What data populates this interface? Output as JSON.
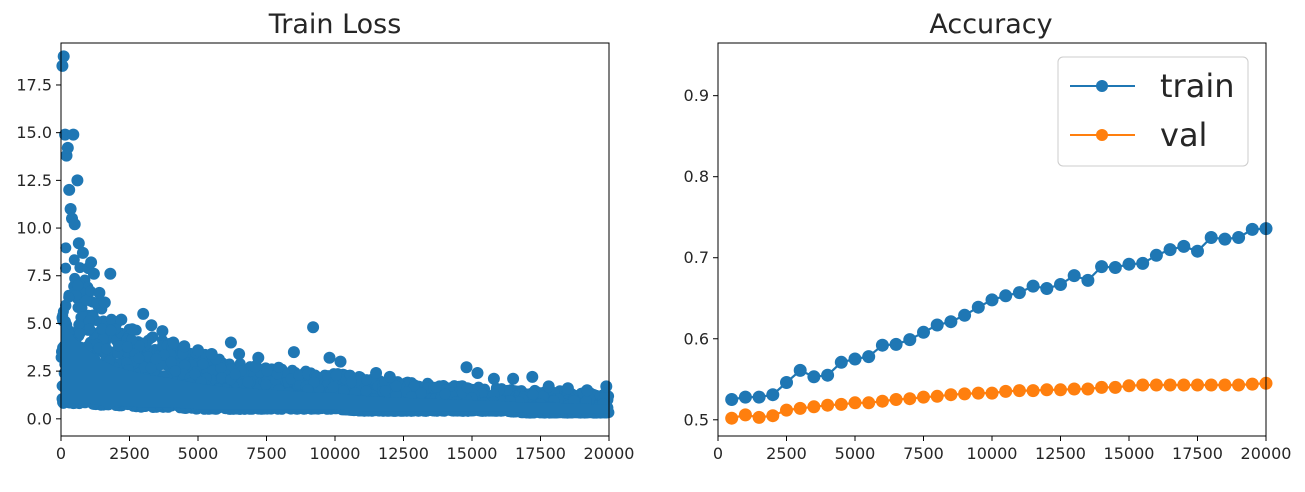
{
  "colors": {
    "train": "#1f77b4",
    "val": "#ff7f0e",
    "axis": "#000000",
    "text": "#262626"
  },
  "chart_data": [
    {
      "type": "scatter",
      "title": "Train Loss",
      "xlabel": "",
      "ylabel": "",
      "xlim": [
        0,
        20000
      ],
      "ylim": [
        -0.9,
        19.7
      ],
      "xticks": [
        0,
        2500,
        5000,
        7500,
        10000,
        12500,
        15000,
        17500,
        20000
      ],
      "yticks": [
        0.0,
        2.5,
        5.0,
        7.5,
        10.0,
        12.5,
        15.0,
        17.5
      ],
      "grid": false,
      "series": [
        {
          "color": "#1f77b4",
          "envelope": {
            "x": [
              0,
              500,
              1000,
              1500,
              2000,
              3000,
              4000,
              5000,
              6000,
              7000,
              8000,
              9000,
              10000,
              11000,
              12000,
              13000,
              14000,
              15000,
              16000,
              17000,
              18000,
              19000,
              20000
            ],
            "upper": [
              10.5,
              8.5,
              7.0,
              6.0,
              5.2,
              4.5,
              4.0,
              3.5,
              3.1,
              2.9,
              2.7,
              2.5,
              2.4,
              2.2,
              2.0,
              1.9,
              1.8,
              1.7,
              1.6,
              1.5,
              1.5,
              1.4,
              1.3
            ],
            "lower": [
              0.8,
              0.8,
              0.8,
              0.7,
              0.7,
              0.6,
              0.6,
              0.5,
              0.5,
              0.5,
              0.5,
              0.5,
              0.5,
              0.4,
              0.4,
              0.4,
              0.4,
              0.4,
              0.4,
              0.3,
              0.3,
              0.3,
              0.3
            ]
          },
          "outliers": [
            [
              50,
              18.5
            ],
            [
              100,
              19.0
            ],
            [
              150,
              14.9
            ],
            [
              200,
              13.8
            ],
            [
              250,
              14.2
            ],
            [
              300,
              12.0
            ],
            [
              350,
              11.0
            ],
            [
              400,
              10.5
            ],
            [
              450,
              14.9
            ],
            [
              500,
              10.2
            ],
            [
              600,
              12.5
            ],
            [
              650,
              9.2
            ],
            [
              800,
              8.7
            ],
            [
              1000,
              7.9
            ],
            [
              1100,
              8.2
            ],
            [
              1200,
              7.6
            ],
            [
              1400,
              6.6
            ],
            [
              1600,
              6.1
            ],
            [
              1800,
              7.6
            ],
            [
              2200,
              5.2
            ],
            [
              2600,
              4.7
            ],
            [
              3000,
              5.5
            ],
            [
              3300,
              4.9
            ],
            [
              3700,
              4.6
            ],
            [
              4100,
              4.0
            ],
            [
              4500,
              3.8
            ],
            [
              5000,
              3.6
            ],
            [
              5500,
              3.4
            ],
            [
              6200,
              4.0
            ],
            [
              6500,
              3.4
            ],
            [
              7200,
              3.2
            ],
            [
              8500,
              3.5
            ],
            [
              9200,
              4.8
            ],
            [
              9800,
              3.2
            ],
            [
              10200,
              3.0
            ],
            [
              11500,
              2.4
            ],
            [
              12000,
              2.2
            ],
            [
              14800,
              2.7
            ],
            [
              15200,
              2.4
            ],
            [
              15800,
              2.1
            ],
            [
              16500,
              2.1
            ],
            [
              17200,
              2.2
            ],
            [
              17800,
              1.7
            ],
            [
              18500,
              1.6
            ],
            [
              19200,
              1.5
            ],
            [
              19900,
              1.7
            ]
          ]
        }
      ]
    },
    {
      "type": "line",
      "title": "Accuracy",
      "xlabel": "",
      "ylabel": "",
      "xlim": [
        0,
        20000
      ],
      "ylim": [
        0.48,
        0.965
      ],
      "xticks": [
        0,
        2500,
        5000,
        7500,
        10000,
        12500,
        15000,
        17500,
        20000
      ],
      "yticks": [
        0.5,
        0.6,
        0.7,
        0.8,
        0.9
      ],
      "grid": false,
      "legend_position": "top-right",
      "x": [
        500,
        1000,
        1500,
        2000,
        2500,
        3000,
        3500,
        4000,
        4500,
        5000,
        5500,
        6000,
        6500,
        7000,
        7500,
        8000,
        8500,
        9000,
        9500,
        10000,
        10500,
        11000,
        11500,
        12000,
        12500,
        13000,
        13500,
        14000,
        14500,
        15000,
        15500,
        16000,
        16500,
        17000,
        17500,
        18000,
        18500,
        19000,
        19500,
        20000
      ],
      "series": [
        {
          "name": "train",
          "color": "#1f77b4",
          "values": [
            0.525,
            0.528,
            0.528,
            0.531,
            0.546,
            0.561,
            0.553,
            0.555,
            0.571,
            0.575,
            0.578,
            0.592,
            0.593,
            0.599,
            0.608,
            0.617,
            0.621,
            0.629,
            0.639,
            0.648,
            0.653,
            0.657,
            0.665,
            0.662,
            0.667,
            0.678,
            0.672,
            0.689,
            0.688,
            0.692,
            0.693,
            0.703,
            0.71,
            0.714,
            0.708,
            0.725,
            0.723,
            0.725,
            0.735,
            0.736
          ]
        },
        {
          "name": "val",
          "color": "#ff7f0e",
          "values": [
            0.502,
            0.506,
            0.503,
            0.505,
            0.512,
            0.514,
            0.516,
            0.518,
            0.519,
            0.521,
            0.521,
            0.523,
            0.525,
            0.526,
            0.528,
            0.529,
            0.531,
            0.532,
            0.533,
            0.533,
            0.535,
            0.536,
            0.536,
            0.537,
            0.537,
            0.538,
            0.538,
            0.54,
            0.54,
            0.542,
            0.543,
            0.543,
            0.543,
            0.543,
            0.543,
            0.543,
            0.543,
            0.543,
            0.544,
            0.545
          ]
        }
      ]
    }
  ]
}
